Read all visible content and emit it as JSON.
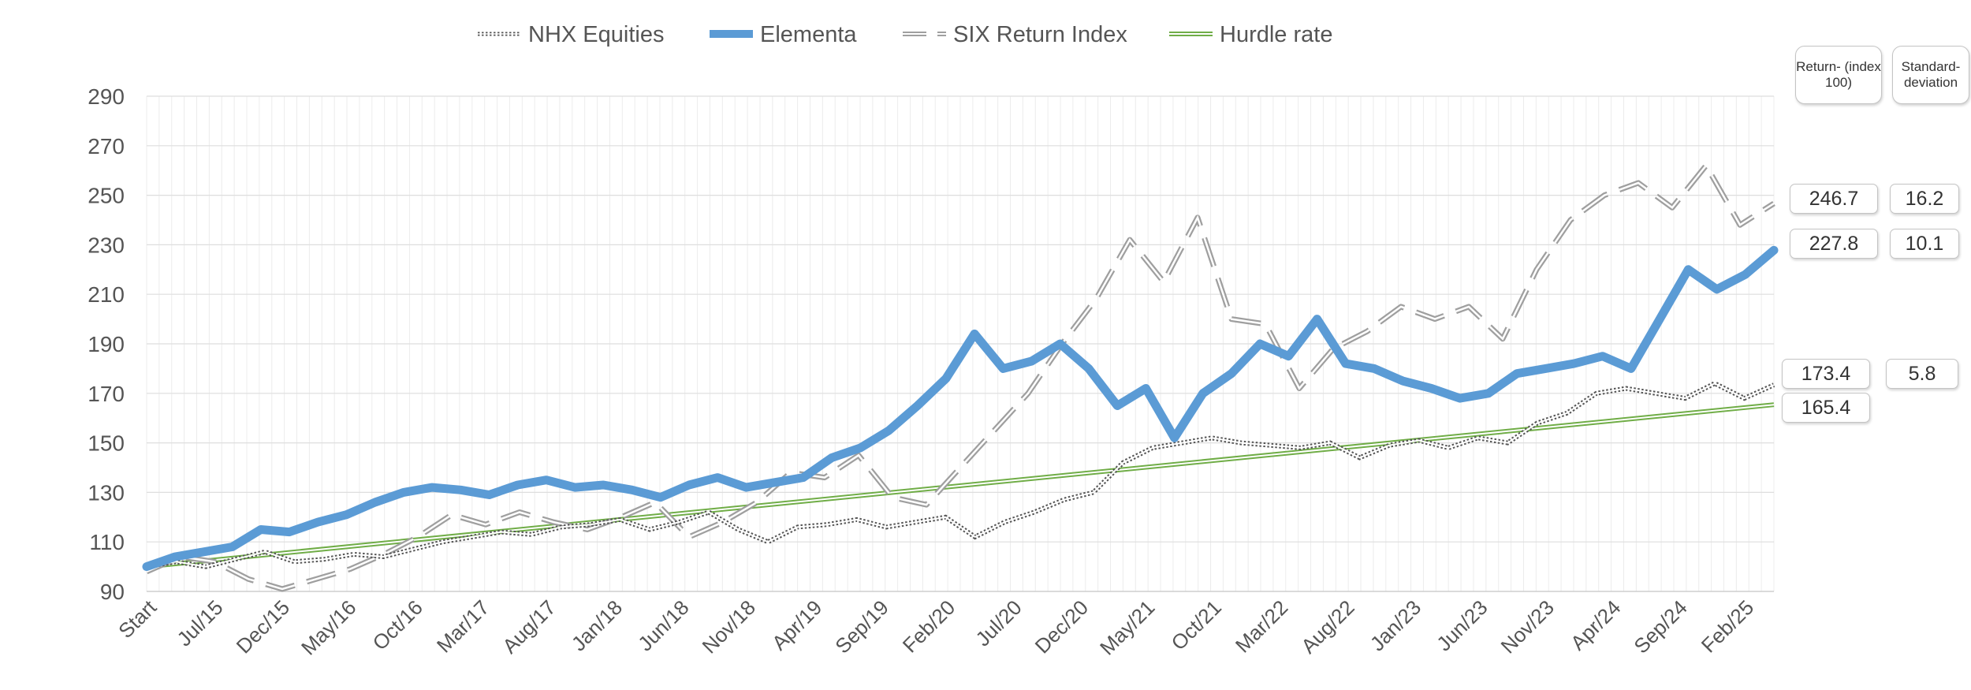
{
  "chart_data": {
    "type": "line",
    "title": "",
    "xlabel": "",
    "ylabel": "",
    "ylim": [
      90,
      290
    ],
    "yticks": [
      90,
      110,
      130,
      150,
      170,
      190,
      210,
      230,
      250,
      270,
      290
    ],
    "grid": true,
    "legend_position": "top",
    "x_tick_labels": [
      "Start",
      "Jul/15",
      "Dec/15",
      "May/16",
      "Oct/16",
      "Mar/17",
      "Aug/17",
      "Jan/18",
      "Jun/18",
      "Nov/18",
      "Apr/19",
      "Sep/19",
      "Feb/20",
      "Jul/20",
      "Dec/20",
      "May/21",
      "Oct/21",
      "Mar/22",
      "Aug/22",
      "Jan/23",
      "Jun/23",
      "Nov/23",
      "Apr/24",
      "Sep/24",
      "Feb/25"
    ],
    "series": [
      {
        "name": "NHX Equities",
        "style": "dotted",
        "color": "#555555",
        "values": [
          100,
          102,
          100,
          103,
          106,
          102,
          103,
          105,
          104,
          107,
          110,
          112,
          114,
          113,
          116,
          117,
          119,
          115,
          118,
          122,
          115,
          110,
          116,
          117,
          119,
          116,
          118,
          120,
          112,
          118,
          122,
          127,
          130,
          142,
          148,
          150,
          152,
          150,
          149,
          148,
          150,
          144,
          149,
          151,
          148,
          152,
          150,
          158,
          162,
          170,
          172,
          170,
          168,
          174,
          168,
          173.4
        ]
      },
      {
        "name": "Elementa",
        "style": "thick",
        "color": "#5b9bd5",
        "values": [
          100,
          104,
          106,
          108,
          115,
          114,
          118,
          121,
          126,
          130,
          132,
          131,
          129,
          133,
          135,
          132,
          133,
          131,
          128,
          133,
          136,
          132,
          134,
          136,
          144,
          148,
          155,
          165,
          176,
          194,
          180,
          183,
          190,
          180,
          165,
          172,
          152,
          170,
          178,
          190,
          185,
          200,
          182,
          180,
          175,
          172,
          168,
          170,
          178,
          180,
          182,
          185,
          180,
          200,
          220,
          212,
          218,
          227.8
        ]
      },
      {
        "name": "SIX Return Index",
        "style": "dashed",
        "color": "#bfbfbf",
        "values": [
          98,
          104,
          102,
          95,
          91,
          95,
          99,
          105,
          112,
          121,
          117,
          122,
          118,
          115,
          120,
          126,
          112,
          118,
          126,
          138,
          136,
          145,
          128,
          125,
          140,
          155,
          170,
          190,
          208,
          232,
          215,
          241,
          200,
          198,
          172,
          188,
          195,
          205,
          200,
          205,
          192,
          220,
          240,
          250,
          255,
          245,
          262,
          238,
          246.7
        ]
      },
      {
        "name": "Hurdle rate",
        "style": "double",
        "color": "#70ad47",
        "values": [
          100,
          165.4
        ]
      }
    ],
    "end_labels": {
      "header_return": "Return- (index 100)",
      "header_std": "Standard- deviation",
      "six_return": "246.7",
      "six_std": "16.2",
      "elementa_return": "227.8",
      "elementa_std": "10.1",
      "nhx_return": "173.4",
      "nhx_std": "5.8",
      "hurdle_return": "165.4"
    }
  }
}
